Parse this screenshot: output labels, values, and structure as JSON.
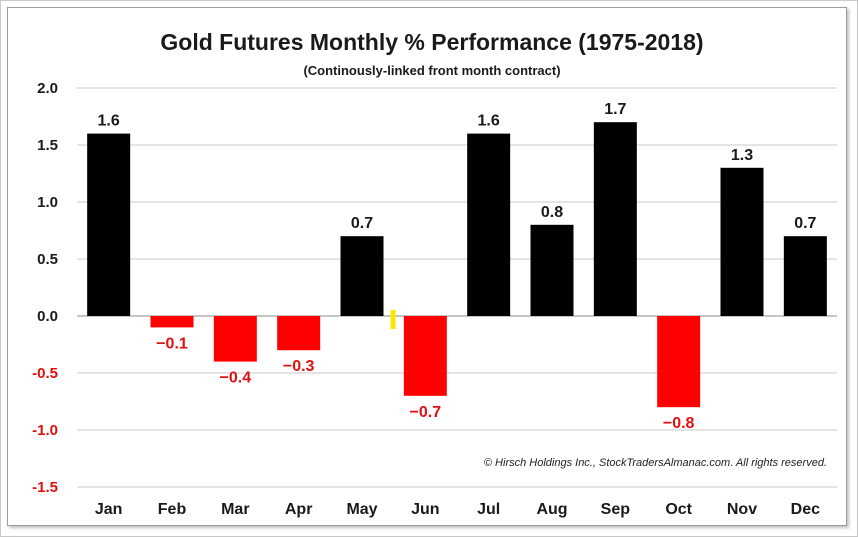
{
  "chart_data": {
    "type": "bar",
    "title": "Gold Futures Monthly % Performance (1975-2018)",
    "subtitle": "(Continously-linked front month contract)",
    "categories": [
      "Jan",
      "Feb",
      "Mar",
      "Apr",
      "May",
      "Jun",
      "Jul",
      "Aug",
      "Sep",
      "Oct",
      "Nov",
      "Dec"
    ],
    "values": [
      1.6,
      -0.1,
      -0.4,
      -0.3,
      0.7,
      -0.7,
      1.6,
      0.8,
      1.7,
      -0.8,
      1.3,
      0.7
    ],
    "value_labels": [
      "1.6",
      "−0.1",
      "−0.4",
      "−0.3",
      "0.7",
      "−0.7",
      "1.6",
      "0.8",
      "1.7",
      "−0.8",
      "1.3",
      "0.7"
    ],
    "ylim": [
      -1.5,
      2.0
    ],
    "yticks": [
      2.0,
      1.5,
      1.0,
      0.5,
      0.0,
      -0.5,
      -1.0,
      -1.5
    ],
    "ytick_labels": [
      "2.0",
      "1.5",
      "1.0",
      "0.5",
      "0.0",
      "-0.5",
      "-1.0",
      "-1.5"
    ],
    "xlabel": "",
    "ylabel": "",
    "grid": true,
    "colors": {
      "positive": "#000000",
      "negative": "#ff0000",
      "positive_tick": "#1a1a1a",
      "negative_tick": "#e01010",
      "grid": "#c8c8c8",
      "marker": "#ffe600"
    },
    "credit": "© Hirsch Holdings Inc., StockTradersAlmanac.com. All rights reserved."
  }
}
